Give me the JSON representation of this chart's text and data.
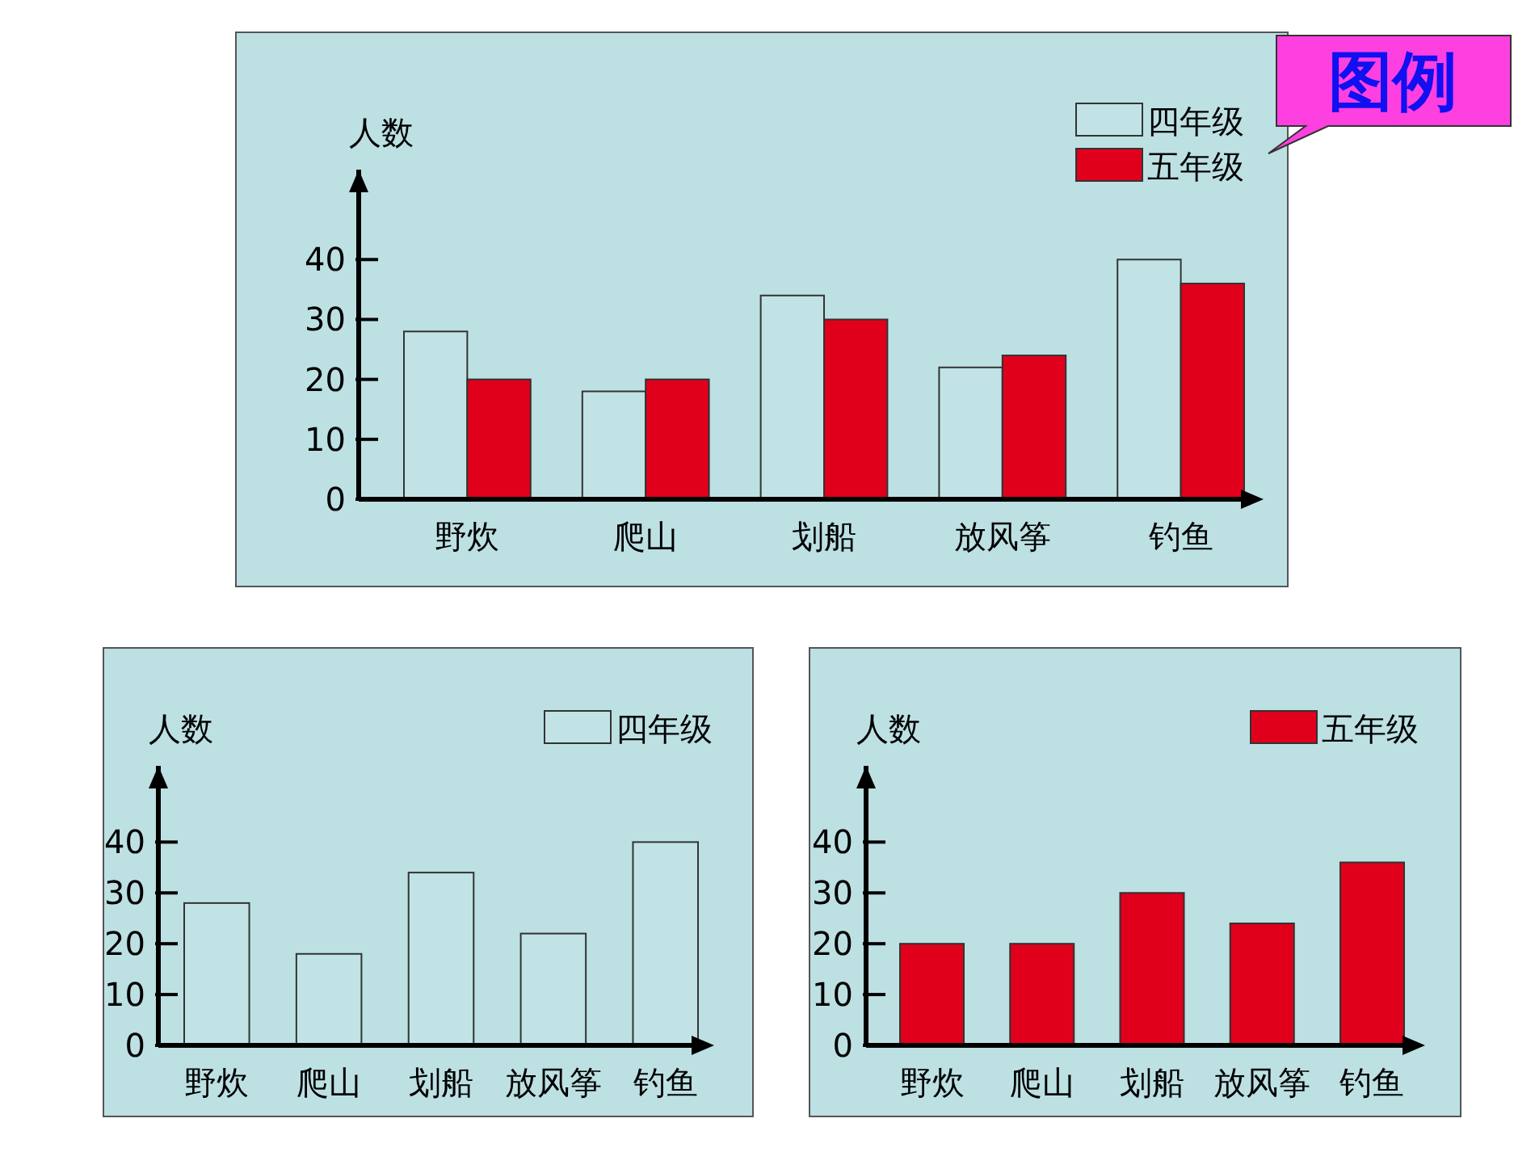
{
  "chart_data": [
    {
      "type": "bar",
      "ylabel": "人数",
      "categories": [
        "野炊",
        "爬山",
        "划船",
        "放风筝",
        "钓鱼"
      ],
      "series": [
        {
          "name": "四年级",
          "color": "#c2e3e6",
          "values": [
            28,
            18,
            34,
            22,
            40
          ]
        },
        {
          "name": "五年级",
          "color": "#e0001b",
          "values": [
            20,
            20,
            30,
            24,
            36
          ]
        }
      ],
      "ylim": [
        0,
        55
      ],
      "yticks": [
        0,
        10,
        20,
        30,
        40
      ],
      "legend": "top right",
      "annotations": [
        "图例"
      ]
    },
    {
      "type": "bar",
      "ylabel": "人数",
      "categories": [
        "野炊",
        "爬山",
        "划船",
        "放风筝",
        "钓鱼"
      ],
      "series": [
        {
          "name": "四年级",
          "color": "#c2e3e6",
          "values": [
            28,
            18,
            34,
            22,
            40
          ]
        }
      ],
      "ylim": [
        0,
        55
      ],
      "yticks": [
        0,
        10,
        20,
        30,
        40
      ],
      "legend": "top right"
    },
    {
      "type": "bar",
      "ylabel": "人数",
      "categories": [
        "野炊",
        "爬山",
        "划船",
        "放风筝",
        "钓鱼"
      ],
      "series": [
        {
          "name": "五年级",
          "color": "#e0001b",
          "values": [
            20,
            20,
            30,
            24,
            36
          ]
        }
      ],
      "ylim": [
        0,
        55
      ],
      "yticks": [
        0,
        10,
        20,
        30,
        40
      ],
      "legend": "top right"
    }
  ]
}
